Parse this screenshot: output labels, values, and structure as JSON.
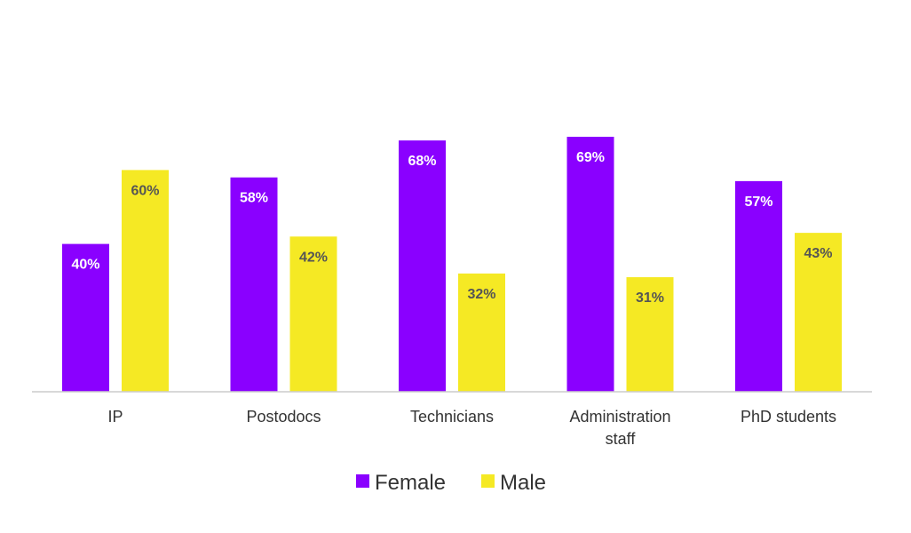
{
  "chart_data": {
    "type": "bar",
    "categories": [
      [
        "IP"
      ],
      [
        "Postodocs"
      ],
      [
        "Technicians"
      ],
      [
        "Administration",
        "staff"
      ],
      [
        "PhD students"
      ]
    ],
    "series": [
      {
        "name": "Female",
        "color": "#8a00ff",
        "label_color": "#ffffff",
        "values": [
          40,
          58,
          68,
          69,
          57
        ],
        "labels": [
          "40%",
          "58%",
          "68%",
          "69%",
          "57%"
        ]
      },
      {
        "name": "Male",
        "color": "#f5e924",
        "label_color": "#555555",
        "values": [
          60,
          42,
          32,
          31,
          43
        ],
        "labels": [
          "60%",
          "42%",
          "32%",
          "31%",
          "43%"
        ]
      }
    ],
    "ylim": [
      0,
      100
    ],
    "grid": false,
    "legend_position": "bottom-center",
    "title": "",
    "xlabel": "",
    "ylabel": ""
  }
}
